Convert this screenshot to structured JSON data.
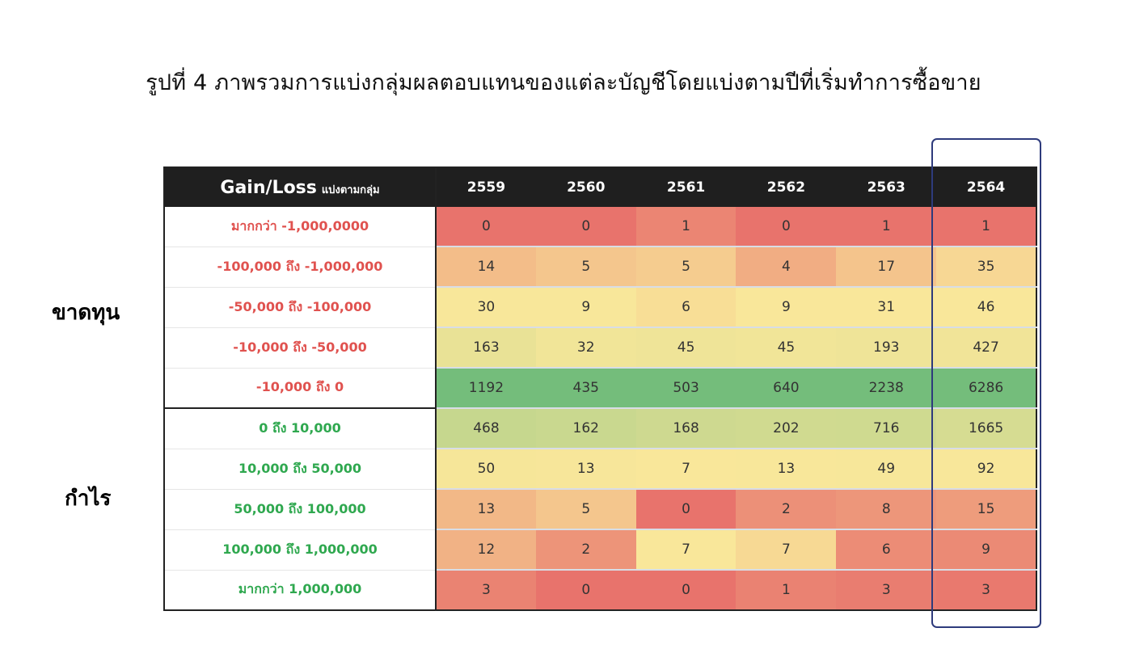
{
  "caption": "รูปที่ 4 ภาพรวมการแบ่งกลุ่มผลตอบแทนของแต่ละบัญชีโดยแบ่งตามปีที่เริ่มทำการซื้อขาย",
  "groups": {
    "loss": {
      "label": "ขาดทุน",
      "color": "#e0524f"
    },
    "profit": {
      "label": "กำไร",
      "color": "#2fa84f"
    }
  },
  "chart_data": {
    "type": "heatmap",
    "header_label": "Gain/Loss",
    "header_sublabel": "แบ่งตามกลุ่ม",
    "years": [
      "2559",
      "2560",
      "2561",
      "2562",
      "2563",
      "2564"
    ],
    "highlighted_year": "2564",
    "rows": [
      {
        "label": "มากกว่า -1,000,0000",
        "group": "loss",
        "values": [
          0,
          0,
          1,
          0,
          1,
          1
        ]
      },
      {
        "label": "-100,000 ถึง -1,000,000",
        "group": "loss",
        "values": [
          14,
          5,
          5,
          4,
          17,
          35
        ]
      },
      {
        "label": "-50,000 ถึง -100,000",
        "group": "loss",
        "values": [
          30,
          9,
          6,
          9,
          31,
          46
        ]
      },
      {
        "label": "-10,000 ถึง -50,000",
        "group": "loss",
        "values": [
          163,
          32,
          45,
          45,
          193,
          427
        ]
      },
      {
        "label": "-10,000 ถึง 0",
        "group": "loss",
        "values": [
          1192,
          435,
          503,
          640,
          2238,
          6286
        ]
      },
      {
        "label": "0 ถึง 10,000",
        "group": "profit",
        "values": [
          468,
          162,
          168,
          202,
          716,
          1665
        ]
      },
      {
        "label": "10,000 ถึง 50,000",
        "group": "profit",
        "values": [
          50,
          13,
          7,
          13,
          49,
          92
        ]
      },
      {
        "label": "50,000 ถึง 100,000",
        "group": "profit",
        "values": [
          13,
          5,
          0,
          2,
          8,
          15
        ]
      },
      {
        "label": "100,000 ถึง 1,000,000",
        "group": "profit",
        "values": [
          12,
          2,
          7,
          7,
          6,
          9
        ]
      },
      {
        "label": "มากกว่า 1,000,000",
        "group": "profit",
        "values": [
          3,
          0,
          0,
          1,
          3,
          3
        ]
      }
    ],
    "color_scale": {
      "low": "#e8736c",
      "mid": "#f9e79a",
      "high": "#74bd7b"
    }
  }
}
